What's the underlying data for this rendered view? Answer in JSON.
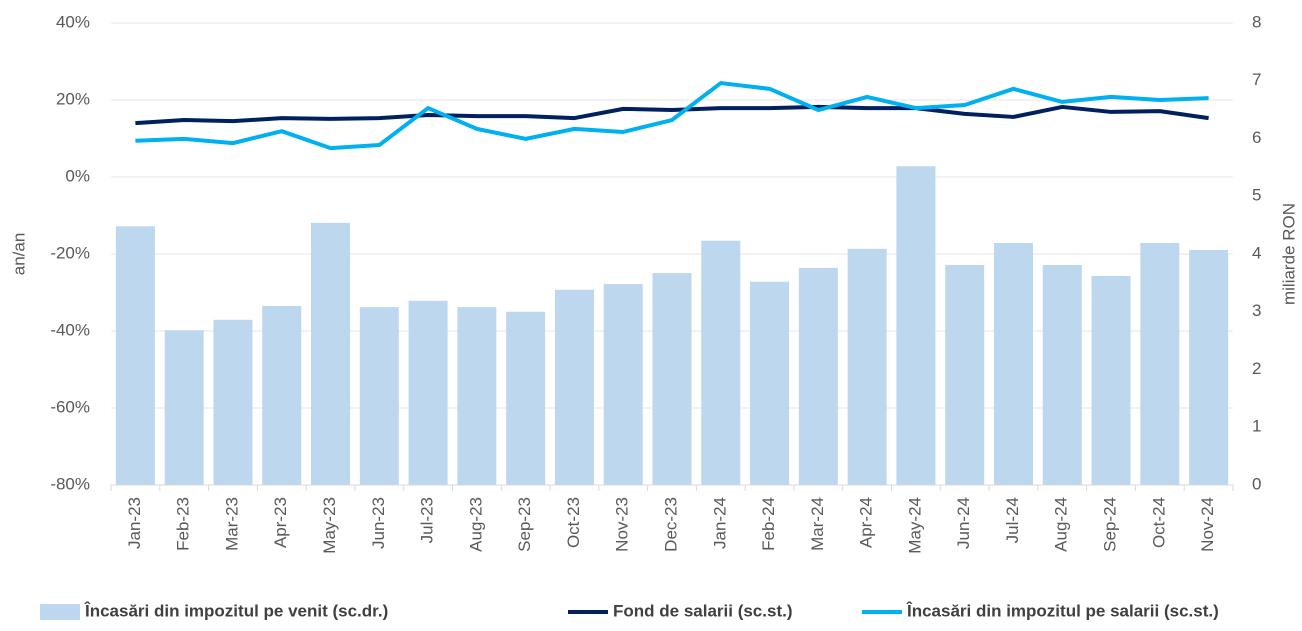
{
  "chart_data": {
    "type": "bar",
    "categories": [
      "Jan-23",
      "Feb-23",
      "Mar-23",
      "Apr-23",
      "May-23",
      "Jun-23",
      "Jul-23",
      "Aug-23",
      "Sep-23",
      "Oct-23",
      "Nov-23",
      "Dec-23",
      "Jan-24",
      "Feb-24",
      "Mar-24",
      "Apr-24",
      "May-24",
      "Jun-24",
      "Jul-24",
      "Aug-24",
      "Sep-24",
      "Oct-24",
      "Nov-24"
    ],
    "series": [
      {
        "name": "Încasări din impozitul pe venit (sc.dr.)",
        "type": "bar",
        "axis": "y2",
        "color": "#bdd7ee",
        "values": [
          4.48,
          2.68,
          2.86,
          3.1,
          4.54,
          3.08,
          3.19,
          3.08,
          3.0,
          3.38,
          3.48,
          3.67,
          4.23,
          3.52,
          3.76,
          4.09,
          5.52,
          3.81,
          4.19,
          3.81,
          3.62,
          4.19,
          4.07
        ]
      },
      {
        "name": "Fond de salarii (sc.st.)",
        "type": "line",
        "color": "#002060",
        "values": [
          14.0,
          14.8,
          14.5,
          15.3,
          15.1,
          15.3,
          16.1,
          15.8,
          15.8,
          15.3,
          17.7,
          17.4,
          17.9,
          17.9,
          18.2,
          17.9,
          17.9,
          16.4,
          15.6,
          18.2,
          16.9,
          17.1,
          15.3
        ]
      },
      {
        "name": "Încasări din impozitul pe salarii (sc.st.)",
        "type": "line",
        "color": "#00b0f0",
        "values": [
          9.4,
          9.9,
          8.8,
          11.9,
          7.5,
          8.3,
          17.9,
          12.5,
          9.9,
          12.5,
          11.7,
          14.8,
          24.4,
          22.9,
          17.4,
          20.8,
          17.9,
          18.7,
          22.9,
          19.5,
          20.8,
          20.0,
          20.5
        ]
      }
    ],
    "ylabel": "an/an",
    "y2label": "miliarde RON",
    "ylim": [
      -80,
      40
    ],
    "yticks": [
      {
        "value": -80,
        "label": "-80%"
      },
      {
        "value": -60,
        "label": "-60%"
      },
      {
        "value": -40,
        "label": "-40%"
      },
      {
        "value": -20,
        "label": "-20%"
      },
      {
        "value": 0,
        "label": "0%"
      },
      {
        "value": 20,
        "label": "20%"
      },
      {
        "value": 40,
        "label": "40%"
      }
    ],
    "y2lim": [
      0,
      8
    ],
    "y2ticks": [
      0,
      1,
      2,
      3,
      4,
      5,
      6,
      7,
      8
    ],
    "grid": true,
    "legend": "bottom"
  }
}
